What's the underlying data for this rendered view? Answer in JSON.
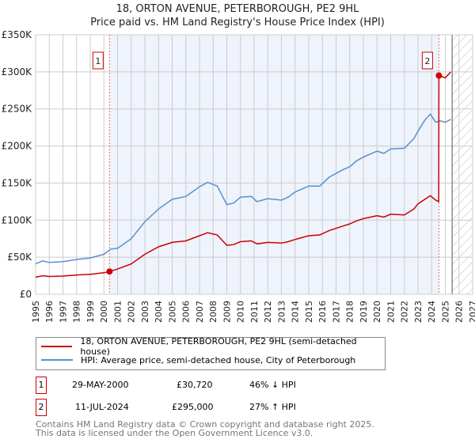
{
  "chart_data": {
    "type": "line",
    "title": "18, ORTON AVENUE, PETERBOROUGH, PE2 9HL",
    "subtitle": "Price paid vs. HM Land Registry's House Price Index (HPI)",
    "xlim": [
      1995,
      2027
    ],
    "ylim": [
      0,
      350000
    ],
    "y_ticks": [
      0,
      50000,
      100000,
      150000,
      200000,
      250000,
      300000,
      350000
    ],
    "y_tick_labels": [
      "£0",
      "£50K",
      "£100K",
      "£150K",
      "£200K",
      "£250K",
      "£300K",
      "£350K"
    ],
    "x_ticks": [
      "1995",
      "1996",
      "1997",
      "1998",
      "1999",
      "2000",
      "2001",
      "2002",
      "2003",
      "2004",
      "2005",
      "2006",
      "2007",
      "2008",
      "2009",
      "2010",
      "2011",
      "2012",
      "2013",
      "2014",
      "2015",
      "2016",
      "2017",
      "2018",
      "2019",
      "2020",
      "2021",
      "2022",
      "2023",
      "2024",
      "2025",
      "2026",
      "2027"
    ],
    "grid": true,
    "series": [
      {
        "name": "18, ORTON AVENUE, PETERBOROUGH, PE2 9HL (semi-detached house)",
        "color": "#cc0000",
        "x": [
          1995,
          1995.5,
          1996,
          1997,
          1998,
          1999,
          2000,
          2000.41,
          2001,
          2002,
          2003,
          2004,
          2005,
          2006,
          2007,
          2007.6,
          2008.3,
          2009,
          2009.5,
          2010,
          2010.8,
          2011.2,
          2012,
          2013,
          2013.5,
          2014,
          2015,
          2015.8,
          2016.5,
          2017.5,
          2018,
          2018.5,
          2019,
          2020,
          2020.5,
          2021,
          2022,
          2022.7,
          2023,
          2023.5,
          2023.9,
          2024.3,
          2024.52,
          2024.53,
          2025,
          2025.4
        ],
        "y": [
          23000,
          25000,
          24000,
          24500,
          26000,
          27000,
          29000,
          30720,
          34000,
          41000,
          54000,
          64000,
          70000,
          72000,
          79000,
          83000,
          80000,
          66000,
          67000,
          71000,
          72000,
          68000,
          70000,
          69000,
          71000,
          74000,
          79000,
          80000,
          86000,
          92000,
          95000,
          99000,
          102000,
          106000,
          104000,
          108000,
          107000,
          115000,
          122000,
          128000,
          133000,
          127000,
          125000,
          295000,
          292000,
          300000
        ]
      },
      {
        "name": "HPI: Average price, semi-detached house, City of Peterborough",
        "color": "#5b8fd0",
        "x": [
          1995,
          1995.5,
          1996,
          1997,
          1998,
          1999,
          2000,
          2000.5,
          2001,
          2002,
          2003,
          2004,
          2005,
          2006,
          2007,
          2007.6,
          2008.3,
          2009,
          2009.5,
          2010,
          2010.8,
          2011.2,
          2012,
          2013,
          2013.5,
          2014,
          2015,
          2015.8,
          2016.5,
          2017.5,
          2018,
          2018.5,
          2019,
          2020,
          2020.5,
          2021,
          2022,
          2022.7,
          2023,
          2023.5,
          2023.9,
          2024.3,
          2024.6,
          2025,
          2025.4
        ],
        "y": [
          41000,
          45000,
          43000,
          44000,
          47000,
          49000,
          54000,
          61000,
          62000,
          75000,
          98000,
          115000,
          128000,
          132000,
          145000,
          151000,
          146000,
          121000,
          123000,
          131000,
          132000,
          125000,
          129000,
          127000,
          131000,
          138000,
          146000,
          146000,
          158000,
          168000,
          172000,
          180000,
          185000,
          193000,
          190000,
          196000,
          197000,
          210000,
          220000,
          235000,
          243000,
          232000,
          234000,
          232000,
          236000
        ]
      }
    ],
    "annotations": [
      {
        "label": "1",
        "date": "29-MAY-2000",
        "x": 2000.41,
        "price": "£30,720",
        "value": 30720,
        "hpi": "46% ↓ HPI"
      },
      {
        "label": "2",
        "date": "11-JUL-2024",
        "x": 2024.53,
        "price": "£295,000",
        "value": 295000,
        "hpi": "27% ↑ HPI"
      }
    ],
    "forecast_from": 2025.5,
    "legend_placement": "below"
  },
  "footer": {
    "line1": "Contains HM Land Registry data © Crown copyright and database right 2025.",
    "line2": "This data is licensed under the Open Government Licence v3.0."
  }
}
